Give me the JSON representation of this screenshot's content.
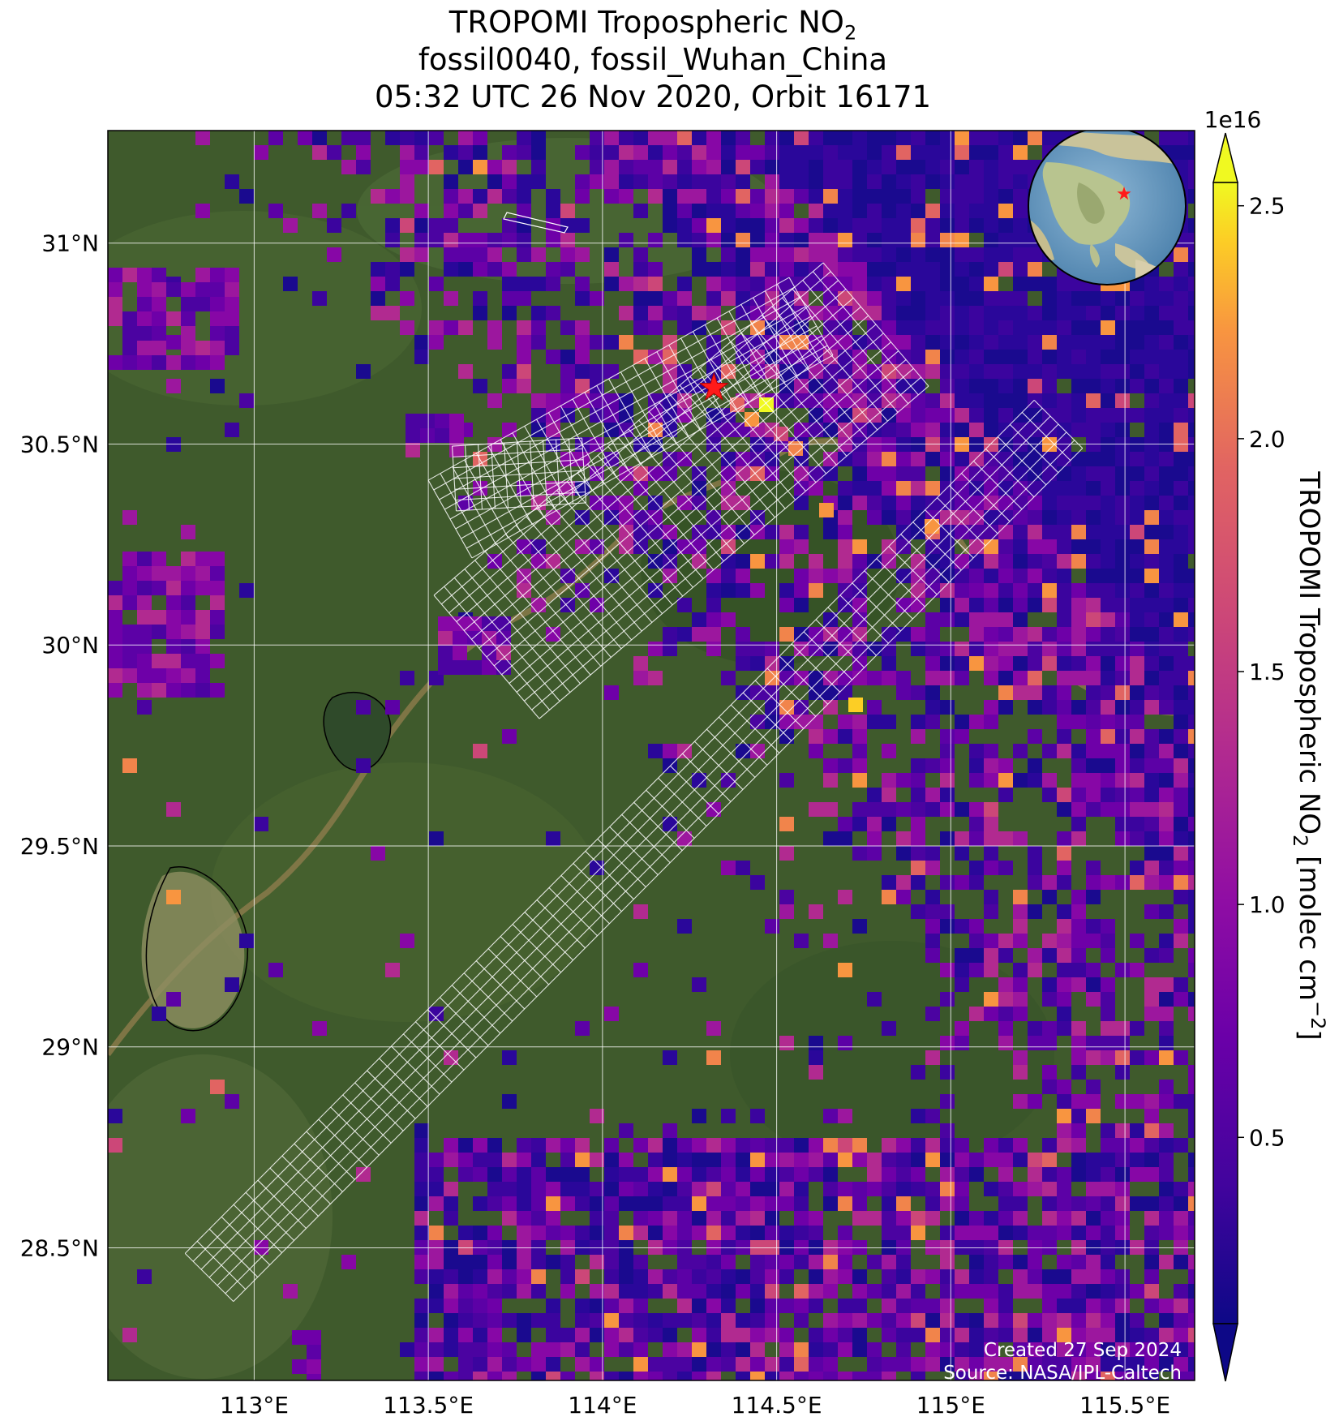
{
  "title": {
    "line1_prefix": "TROPOMI Tropospheric NO",
    "line1_sub": "2",
    "line2": "fossil0040, fossil_Wuhan_China",
    "line3": "05:32 UTC 26 Nov 2020, Orbit 16171"
  },
  "map": {
    "extent": {
      "lon_min": 112.58,
      "lon_max": 115.7,
      "lat_min": 28.17,
      "lat_max": 31.28
    },
    "x_ticks": [
      {
        "value": 113.0,
        "label": "113°E"
      },
      {
        "value": 113.5,
        "label": "113.5°E"
      },
      {
        "value": 114.0,
        "label": "114°E"
      },
      {
        "value": 114.5,
        "label": "114.5°E"
      },
      {
        "value": 115.0,
        "label": "115°E"
      },
      {
        "value": 115.5,
        "label": "115.5°E"
      }
    ],
    "y_ticks": [
      {
        "value": 31.0,
        "label": "31°N"
      },
      {
        "value": 30.5,
        "label": "30.5°N"
      },
      {
        "value": 30.0,
        "label": "30°N"
      },
      {
        "value": 29.5,
        "label": "29.5°N"
      },
      {
        "value": 29.0,
        "label": "29°N"
      },
      {
        "value": 28.5,
        "label": "28.5°N"
      }
    ],
    "gridlines": true,
    "target_marker": {
      "name": "fossil_Wuhan_China",
      "lon": 114.32,
      "lat": 30.64,
      "color": "#ff1a1a",
      "icon": "star-icon"
    },
    "inset_globe": {
      "placement": "top-right",
      "icon": "globe-icon",
      "marker_icon": "star-icon"
    }
  },
  "colorbar": {
    "label_prefix": "TROPOMI Tropospheric NO",
    "label_sub": "2",
    "label_mid": " [molec cm",
    "label_sup": "−2",
    "label_suffix": "]",
    "scale_label": "1e16",
    "min": 0.1,
    "max": 2.55,
    "ticks": [
      {
        "value": 0.5,
        "label": "0.5"
      },
      {
        "value": 1.0,
        "label": "1.0"
      },
      {
        "value": 1.5,
        "label": "1.5"
      },
      {
        "value": 2.0,
        "label": "2.0"
      },
      {
        "value": 2.5,
        "label": "2.5"
      }
    ],
    "extend": "both",
    "colormap": "plasma"
  },
  "footer": {
    "created": "Created 27 Sep 2024",
    "source": "Source: NASA/JPL-Caltech"
  }
}
